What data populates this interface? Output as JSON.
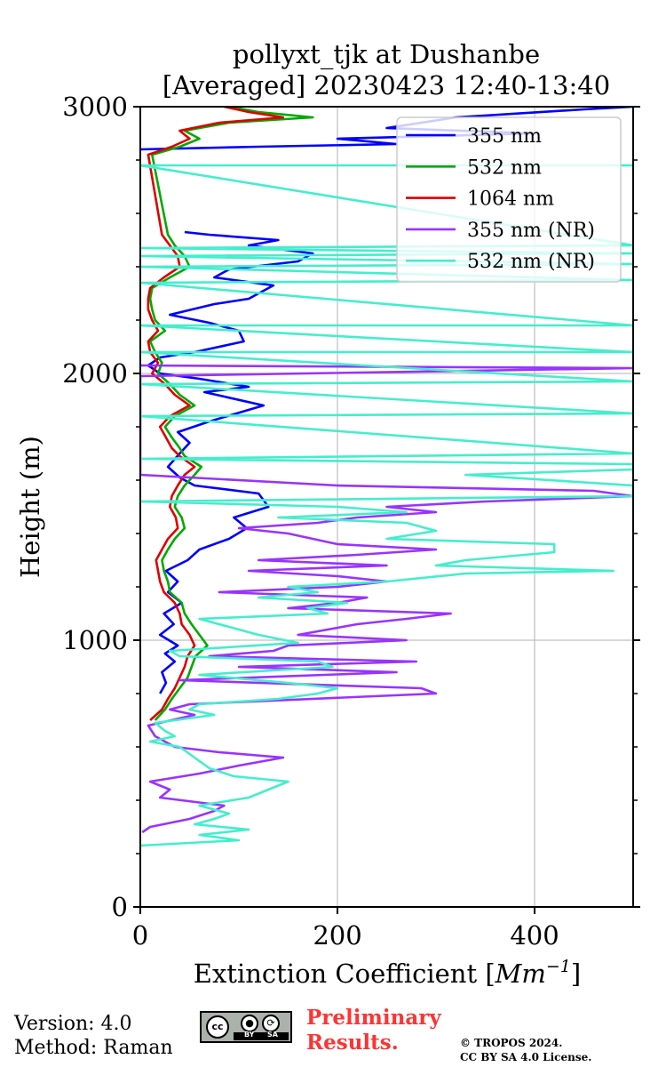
{
  "title_line1": "pollyxt_tjk at Dushanbe",
  "title_line2": "[Averaged] 20230423 12:40-13:40",
  "footer": {
    "version": "Version: 4.0",
    "method": "Method: Raman",
    "preliminary_line1": "Preliminary",
    "preliminary_line2": "Results.",
    "copyright_line1": "© TROPOS 2024.",
    "copyright_line2": "CC BY SA 4.0 License.",
    "license_badge": "CC BY SA",
    "badge_cc": "cc",
    "badge_by": "BY",
    "badge_sa": "SA"
  },
  "chart_data": {
    "type": "line",
    "title": "pollyxt_tjk at Dushanbe [Averaged] 20230423 12:40-13:40",
    "xlabel": "Extinction Coefficient [Mm^-1]",
    "xlabel_main": "Extinction Coefficient [",
    "xlabel_unit": "Mm",
    "xlabel_exp": "−1",
    "xlabel_close": "]",
    "ylabel": "Height (m)",
    "xlim": [
      0,
      500
    ],
    "ylim": [
      0,
      3000
    ],
    "xticks": [
      0,
      200,
      400
    ],
    "xtick_labels": [
      "0",
      "200",
      "400"
    ],
    "yticks": [
      0,
      1000,
      2000,
      3000
    ],
    "ytick_labels": [
      "0",
      "1000",
      "2000",
      "3000"
    ],
    "yminor_step": 200,
    "grid": true,
    "legend_position": "top-right",
    "series": [
      {
        "name": "355 nm",
        "color": "#0000ff",
        "points": [
          [
            20,
            800
          ],
          [
            26,
            840
          ],
          [
            22,
            880
          ],
          [
            35,
            920
          ],
          [
            25,
            950
          ],
          [
            38,
            980
          ],
          [
            20,
            1020
          ],
          [
            34,
            1060
          ],
          [
            24,
            1100
          ],
          [
            42,
            1140
          ],
          [
            28,
            1180
          ],
          [
            38,
            1220
          ],
          [
            26,
            1260
          ],
          [
            48,
            1300
          ],
          [
            60,
            1340
          ],
          [
            90,
            1380
          ],
          [
            108,
            1420
          ],
          [
            95,
            1460
          ],
          [
            130,
            1500
          ],
          [
            120,
            1550
          ],
          [
            55,
            1580
          ],
          [
            40,
            1610
          ],
          [
            28,
            1650
          ],
          [
            40,
            1700
          ],
          [
            50,
            1740
          ],
          [
            38,
            1780
          ],
          [
            70,
            1820
          ],
          [
            125,
            1880
          ],
          [
            65,
            1930
          ],
          [
            110,
            1950
          ],
          [
            60,
            1980
          ],
          [
            20,
            2000
          ],
          [
            8,
            2030
          ],
          [
            20,
            2060
          ],
          [
            55,
            2080
          ],
          [
            105,
            2120
          ],
          [
            100,
            2160
          ],
          [
            70,
            2190
          ],
          [
            30,
            2220
          ],
          [
            75,
            2260
          ],
          [
            110,
            2280
          ],
          [
            120,
            2300
          ],
          [
            135,
            2330
          ],
          [
            75,
            2360
          ],
          [
            90,
            2390
          ],
          [
            160,
            2420
          ],
          [
            175,
            2450
          ],
          [
            110,
            2480
          ],
          [
            140,
            2500
          ],
          [
            70,
            2520
          ],
          [
            45,
            2530
          ]
        ],
        "points_upper": [
          [
            0,
            2840
          ],
          [
            120,
            2850
          ],
          [
            260,
            2860
          ],
          [
            200,
            2880
          ],
          [
            400,
            2900
          ],
          [
            250,
            2920
          ],
          [
            320,
            2960
          ],
          [
            450,
            2990
          ],
          [
            500,
            3000
          ]
        ]
      },
      {
        "name": "532 nm",
        "color": "#00aa00",
        "points": [
          [
            15,
            700
          ],
          [
            25,
            740
          ],
          [
            32,
            780
          ],
          [
            40,
            820
          ],
          [
            48,
            860
          ],
          [
            52,
            900
          ],
          [
            56,
            940
          ],
          [
            68,
            980
          ],
          [
            60,
            1020
          ],
          [
            52,
            1060
          ],
          [
            45,
            1100
          ],
          [
            42,
            1140
          ],
          [
            30,
            1180
          ],
          [
            28,
            1220
          ],
          [
            24,
            1260
          ],
          [
            22,
            1300
          ],
          [
            28,
            1340
          ],
          [
            35,
            1380
          ],
          [
            45,
            1420
          ],
          [
            42,
            1460
          ],
          [
            35,
            1500
          ],
          [
            38,
            1540
          ],
          [
            45,
            1580
          ],
          [
            55,
            1620
          ],
          [
            62,
            1650
          ],
          [
            45,
            1690
          ],
          [
            40,
            1720
          ],
          [
            32,
            1760
          ],
          [
            25,
            1800
          ],
          [
            35,
            1840
          ],
          [
            55,
            1880
          ],
          [
            40,
            1920
          ],
          [
            30,
            1960
          ],
          [
            18,
            2000
          ],
          [
            22,
            2040
          ],
          [
            15,
            2080
          ],
          [
            10,
            2120
          ],
          [
            25,
            2160
          ],
          [
            15,
            2200
          ],
          [
            12,
            2240
          ],
          [
            10,
            2280
          ],
          [
            12,
            2320
          ],
          [
            30,
            2360
          ],
          [
            50,
            2400
          ],
          [
            45,
            2440
          ],
          [
            35,
            2480
          ],
          [
            28,
            2520
          ],
          [
            12,
            2820
          ],
          [
            40,
            2850
          ],
          [
            60,
            2880
          ],
          [
            45,
            2910
          ],
          [
            90,
            2940
          ],
          [
            175,
            2960
          ],
          [
            120,
            2980
          ],
          [
            90,
            3000
          ]
        ]
      },
      {
        "name": "1064 nm",
        "color": "#dd0000",
        "points": [
          [
            10,
            700
          ],
          [
            22,
            740
          ],
          [
            28,
            780
          ],
          [
            35,
            820
          ],
          [
            40,
            860
          ],
          [
            45,
            900
          ],
          [
            48,
            940
          ],
          [
            55,
            980
          ],
          [
            50,
            1020
          ],
          [
            42,
            1060
          ],
          [
            40,
            1100
          ],
          [
            35,
            1140
          ],
          [
            24,
            1180
          ],
          [
            20,
            1220
          ],
          [
            18,
            1260
          ],
          [
            16,
            1300
          ],
          [
            22,
            1340
          ],
          [
            28,
            1380
          ],
          [
            38,
            1420
          ],
          [
            36,
            1460
          ],
          [
            30,
            1500
          ],
          [
            32,
            1540
          ],
          [
            38,
            1580
          ],
          [
            45,
            1620
          ],
          [
            55,
            1650
          ],
          [
            40,
            1690
          ],
          [
            32,
            1720
          ],
          [
            26,
            1760
          ],
          [
            20,
            1800
          ],
          [
            30,
            1840
          ],
          [
            50,
            1880
          ],
          [
            35,
            1920
          ],
          [
            25,
            1960
          ],
          [
            12,
            2000
          ],
          [
            18,
            2040
          ],
          [
            10,
            2080
          ],
          [
            8,
            2120
          ],
          [
            18,
            2160
          ],
          [
            12,
            2200
          ],
          [
            8,
            2240
          ],
          [
            8,
            2280
          ],
          [
            10,
            2320
          ],
          [
            24,
            2360
          ],
          [
            40,
            2400
          ],
          [
            38,
            2440
          ],
          [
            30,
            2480
          ],
          [
            22,
            2520
          ],
          [
            8,
            2820
          ],
          [
            32,
            2850
          ],
          [
            50,
            2880
          ],
          [
            40,
            2910
          ],
          [
            80,
            2940
          ],
          [
            145,
            2960
          ],
          [
            110,
            2980
          ],
          [
            85,
            3000
          ]
        ]
      },
      {
        "name": "355 nm (NR)",
        "color": "#9933ff",
        "points": [
          [
            2,
            280
          ],
          [
            10,
            300
          ],
          [
            50,
            330
          ],
          [
            75,
            360
          ],
          [
            85,
            380
          ],
          [
            20,
            410
          ],
          [
            30,
            440
          ],
          [
            10,
            470
          ],
          [
            60,
            500
          ],
          [
            100,
            530
          ],
          [
            145,
            560
          ],
          [
            80,
            580
          ],
          [
            35,
            600
          ],
          [
            15,
            640
          ],
          [
            8,
            680
          ],
          [
            55,
            720
          ],
          [
            30,
            740
          ],
          [
            50,
            760
          ],
          [
            300,
            800
          ],
          [
            285,
            820
          ],
          [
            40,
            850
          ],
          [
            260,
            880
          ],
          [
            100,
            900
          ],
          [
            280,
            920
          ],
          [
            70,
            940
          ],
          [
            135,
            960
          ],
          [
            150,
            980
          ],
          [
            270,
            1000
          ],
          [
            160,
            1020
          ],
          [
            220,
            1060
          ],
          [
            270,
            1080
          ],
          [
            315,
            1100
          ],
          [
            150,
            1120
          ],
          [
            200,
            1140
          ],
          [
            230,
            1160
          ],
          [
            80,
            1180
          ],
          [
            200,
            1200
          ],
          [
            250,
            1220
          ],
          [
            200,
            1240
          ],
          [
            110,
            1260
          ],
          [
            250,
            1280
          ],
          [
            120,
            1300
          ],
          [
            220,
            1320
          ],
          [
            300,
            1340
          ],
          [
            200,
            1360
          ],
          [
            150,
            1400
          ],
          [
            100,
            1420
          ],
          [
            180,
            1440
          ],
          [
            220,
            1460
          ],
          [
            300,
            1480
          ],
          [
            250,
            1500
          ],
          [
            350,
            1520
          ],
          [
            500,
            1540
          ],
          [
            460,
            1560
          ],
          [
            200,
            1580
          ],
          [
            0,
            1620
          ],
          [
            0,
            1800
          ],
          [
            0,
            1990
          ],
          [
            500,
            2020
          ],
          [
            0,
            2030
          ]
        ]
      },
      {
        "name": "532 nm (NR)",
        "color": "#44eecc",
        "points": [
          [
            0,
            230
          ],
          [
            100,
            250
          ],
          [
            60,
            270
          ],
          [
            110,
            290
          ],
          [
            55,
            310
          ],
          [
            75,
            330
          ],
          [
            90,
            350
          ],
          [
            60,
            380
          ],
          [
            110,
            410
          ],
          [
            130,
            440
          ],
          [
            150,
            470
          ],
          [
            95,
            490
          ],
          [
            70,
            520
          ],
          [
            55,
            560
          ],
          [
            40,
            600
          ],
          [
            10,
            620
          ],
          [
            35,
            640
          ],
          [
            25,
            660
          ],
          [
            15,
            690
          ],
          [
            75,
            720
          ],
          [
            50,
            740
          ],
          [
            60,
            760
          ],
          [
            140,
            780
          ],
          [
            180,
            800
          ],
          [
            200,
            820
          ],
          [
            150,
            840
          ],
          [
            60,
            870
          ],
          [
            195,
            900
          ],
          [
            180,
            920
          ],
          [
            40,
            940
          ],
          [
            30,
            960
          ],
          [
            160,
            990
          ],
          [
            120,
            1020
          ],
          [
            100,
            1040
          ],
          [
            60,
            1080
          ],
          [
            190,
            1100
          ],
          [
            170,
            1120
          ],
          [
            210,
            1140
          ],
          [
            120,
            1160
          ],
          [
            180,
            1180
          ],
          [
            150,
            1200
          ],
          [
            250,
            1220
          ],
          [
            330,
            1250
          ],
          [
            480,
            1260
          ],
          [
            300,
            1280
          ],
          [
            330,
            1300
          ],
          [
            420,
            1330
          ],
          [
            420,
            1360
          ],
          [
            250,
            1380
          ],
          [
            300,
            1410
          ],
          [
            270,
            1440
          ],
          [
            140,
            1460
          ],
          [
            270,
            1480
          ],
          [
            200,
            1500
          ],
          [
            0,
            1520
          ],
          [
            500,
            1540
          ],
          [
            500,
            1580
          ],
          [
            330,
            1620
          ],
          [
            500,
            1640
          ],
          [
            500,
            1660
          ],
          [
            0,
            1680
          ],
          [
            500,
            1700
          ],
          [
            0,
            1840
          ],
          [
            500,
            1850
          ],
          [
            0,
            1960
          ],
          [
            500,
            1970
          ],
          [
            0,
            2080
          ],
          [
            500,
            2080
          ],
          [
            0,
            2180
          ],
          [
            500,
            2180
          ],
          [
            0,
            2340
          ],
          [
            500,
            2350
          ],
          [
            0,
            2400
          ],
          [
            500,
            2410
          ],
          [
            0,
            2440
          ],
          [
            500,
            2450
          ],
          [
            0,
            2470
          ],
          [
            500,
            2480
          ],
          [
            0,
            2780
          ],
          [
            500,
            2780
          ]
        ]
      }
    ]
  }
}
